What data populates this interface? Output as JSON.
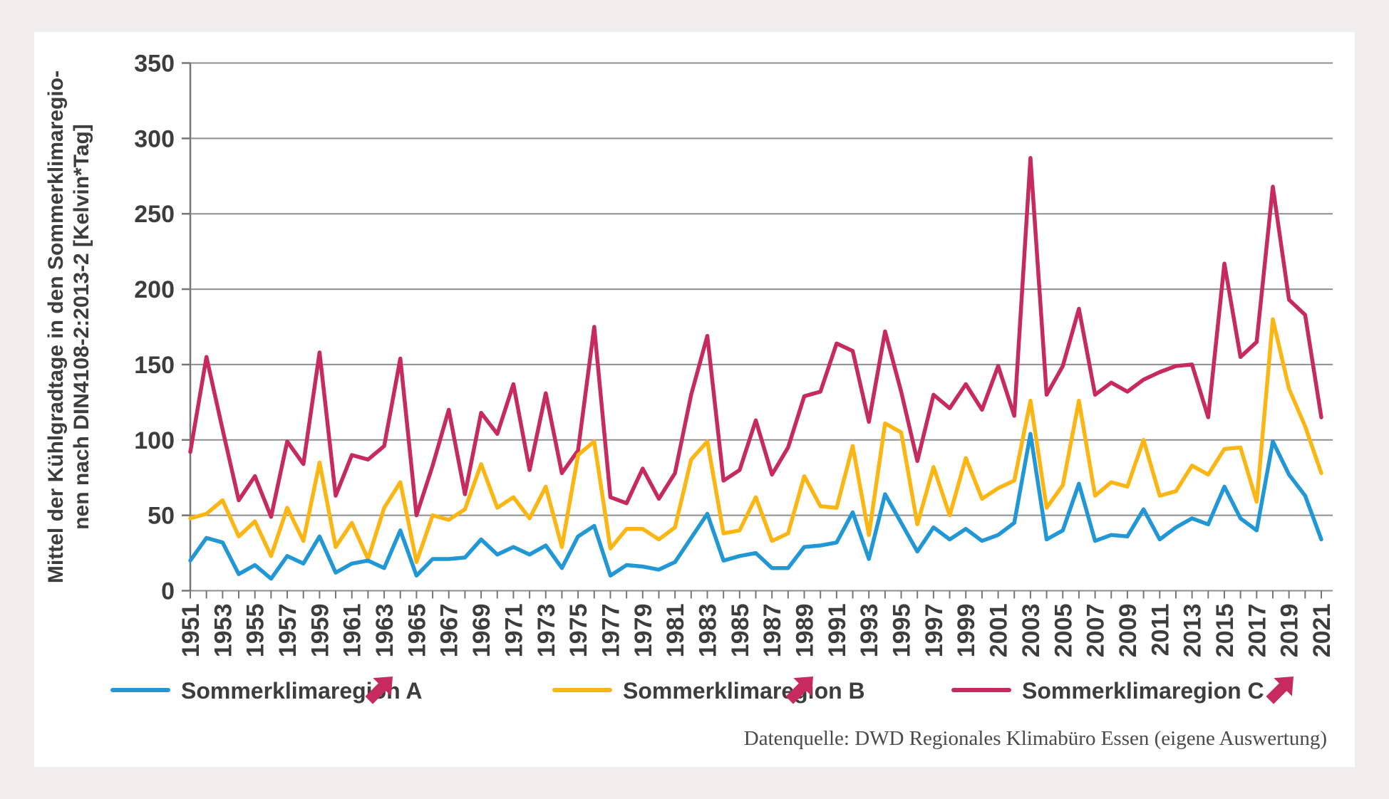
{
  "page": {
    "background": "#f0efed",
    "card_background": "#ffffff"
  },
  "y_axis": {
    "title_line1": "Mittel der Kühlgradtage in den Sommerklimaregio-",
    "title_line2": "nen nach DIN4108-2:2013-2 [Kelvin*Tag]",
    "min": 0,
    "max": 350,
    "tick_step": 50,
    "tick_labels": [
      "0",
      "50",
      "100",
      "150",
      "200",
      "250",
      "300",
      "350"
    ]
  },
  "x_axis": {
    "start_year": 1951,
    "end_year": 2021,
    "label_every": 2
  },
  "legend": [
    {
      "label": "Sommerklimaregion A",
      "color": "#2197d6",
      "trend_icon": "arrow-up-right",
      "trend_color": "#c72a5e"
    },
    {
      "label": "Sommerklimaregion B",
      "color": "#fcb614",
      "trend_icon": "arrow-up-right",
      "trend_color": "#c72a5e"
    },
    {
      "label": "Sommerklimaregion C",
      "color": "#c72a5e",
      "trend_icon": "arrow-up-right",
      "trend_color": "#c72a5e"
    }
  ],
  "source": "Datenquelle: DWD Regionales Klimabüro Essen (eigene Auswertung)",
  "chart_data": {
    "type": "line",
    "title": "",
    "ylabel": "Mittel der Kühlgradtage in den Sommerklimaregionen nach DIN4108-2:2013-2 [Kelvin*Tag]",
    "xlabel": "",
    "ylim": [
      0,
      350
    ],
    "grid": true,
    "legend_position": "bottom",
    "x": [
      1951,
      1952,
      1953,
      1954,
      1955,
      1956,
      1957,
      1958,
      1959,
      1960,
      1961,
      1962,
      1963,
      1964,
      1965,
      1966,
      1967,
      1968,
      1969,
      1970,
      1971,
      1972,
      1973,
      1974,
      1975,
      1976,
      1977,
      1978,
      1979,
      1980,
      1981,
      1982,
      1983,
      1984,
      1985,
      1986,
      1987,
      1988,
      1989,
      1990,
      1991,
      1992,
      1993,
      1994,
      1995,
      1996,
      1997,
      1998,
      1999,
      2000,
      2001,
      2002,
      2003,
      2004,
      2005,
      2006,
      2007,
      2008,
      2009,
      2010,
      2011,
      2012,
      2013,
      2014,
      2015,
      2016,
      2017,
      2018,
      2019,
      2020,
      2021
    ],
    "series": [
      {
        "name": "Sommerklimaregion A",
        "color": "#2197d6",
        "values": [
          20,
          35,
          32,
          11,
          17,
          8,
          23,
          18,
          36,
          12,
          18,
          20,
          15,
          40,
          10,
          21,
          21,
          22,
          34,
          24,
          29,
          24,
          30,
          15,
          36,
          43,
          10,
          17,
          16,
          14,
          19,
          35,
          51,
          20,
          23,
          25,
          15,
          15,
          29,
          30,
          32,
          52,
          21,
          64,
          45,
          26,
          42,
          34,
          41,
          33,
          37,
          45,
          104,
          34,
          40,
          71,
          33,
          37,
          36,
          54,
          34,
          42,
          48,
          44,
          69,
          48,
          40,
          99,
          77,
          63,
          34
        ]
      },
      {
        "name": "Sommerklimaregion B",
        "color": "#fcb614",
        "values": [
          48,
          51,
          60,
          36,
          46,
          23,
          55,
          33,
          85,
          29,
          45,
          21,
          55,
          72,
          19,
          50,
          47,
          54,
          84,
          55,
          62,
          48,
          69,
          29,
          90,
          99,
          28,
          41,
          41,
          34,
          42,
          87,
          99,
          38,
          40,
          62,
          33,
          38,
          76,
          56,
          55,
          96,
          37,
          111,
          105,
          44,
          82,
          50,
          88,
          61,
          68,
          73,
          126,
          55,
          70,
          126,
          63,
          72,
          69,
          100,
          63,
          66,
          83,
          77,
          94,
          95,
          59,
          180,
          134,
          109,
          78
        ]
      },
      {
        "name": "Sommerklimaregion C",
        "color": "#c72a5e",
        "values": [
          92,
          155,
          107,
          60,
          76,
          49,
          99,
          84,
          158,
          63,
          90,
          87,
          96,
          154,
          50,
          83,
          120,
          64,
          118,
          104,
          137,
          80,
          131,
          78,
          93,
          175,
          62,
          58,
          81,
          61,
          78,
          130,
          169,
          73,
          80,
          113,
          77,
          95,
          129,
          132,
          164,
          159,
          112,
          172,
          132,
          86,
          130,
          121,
          137,
          120,
          149,
          116,
          287,
          130,
          149,
          187,
          130,
          138,
          132,
          140,
          145,
          149,
          150,
          115,
          217,
          155,
          165,
          268,
          193,
          183,
          115
        ]
      }
    ]
  }
}
